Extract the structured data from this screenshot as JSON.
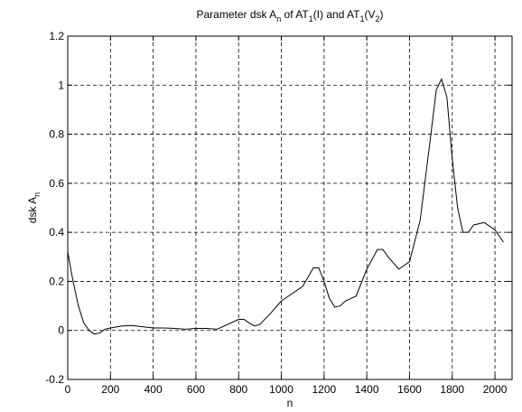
{
  "chart_data": {
    "type": "line",
    "title": [
      {
        "text": "Parameter dsk A"
      },
      {
        "text": "n",
        "sub": true
      },
      {
        "text": " of AT"
      },
      {
        "text": "1",
        "sub": true
      },
      {
        "text": "(I) and AT"
      },
      {
        "text": "1",
        "sub": true
      },
      {
        "text": "(V"
      },
      {
        "text": "2",
        "sub": true
      },
      {
        "text": ")"
      }
    ],
    "xlabel": [
      {
        "text": "n"
      }
    ],
    "ylabel": [
      {
        "text": "dsk A"
      },
      {
        "text": "n",
        "sub": true
      }
    ],
    "x": [
      0,
      25,
      50,
      75,
      100,
      125,
      150,
      175,
      200,
      250,
      300,
      350,
      400,
      450,
      500,
      550,
      600,
      650,
      700,
      750,
      800,
      825,
      850,
      875,
      900,
      950,
      1000,
      1050,
      1100,
      1150,
      1175,
      1200,
      1225,
      1250,
      1275,
      1300,
      1350,
      1400,
      1450,
      1475,
      1500,
      1550,
      1600,
      1650,
      1700,
      1725,
      1750,
      1775,
      1800,
      1825,
      1850,
      1875,
      1900,
      1950,
      2000,
      2040
    ],
    "series": [
      {
        "color": "#000000",
        "values": [
          0.32,
          0.2,
          0.1,
          0.03,
          0.0,
          -0.015,
          -0.01,
          0.005,
          0.01,
          0.018,
          0.02,
          0.015,
          0.01,
          0.01,
          0.008,
          0.005,
          0.008,
          0.008,
          0.005,
          0.025,
          0.045,
          0.045,
          0.03,
          0.018,
          0.025,
          0.07,
          0.12,
          0.15,
          0.18,
          0.255,
          0.255,
          0.2,
          0.13,
          0.095,
          0.1,
          0.12,
          0.14,
          0.25,
          0.33,
          0.33,
          0.3,
          0.25,
          0.28,
          0.45,
          0.8,
          0.98,
          1.025,
          0.95,
          0.7,
          0.5,
          0.4,
          0.4,
          0.43,
          0.44,
          0.41,
          0.36
        ]
      }
    ],
    "xlim": [
      0,
      2080
    ],
    "xticks": [
      0,
      200,
      400,
      600,
      800,
      1000,
      1200,
      1400,
      1600,
      1800,
      2000
    ],
    "ylim": [
      -0.2,
      1.2
    ],
    "yticks": [
      -0.2,
      0,
      0.2,
      0.4,
      0.6,
      0.8,
      1,
      1.2
    ],
    "grid": true
  }
}
